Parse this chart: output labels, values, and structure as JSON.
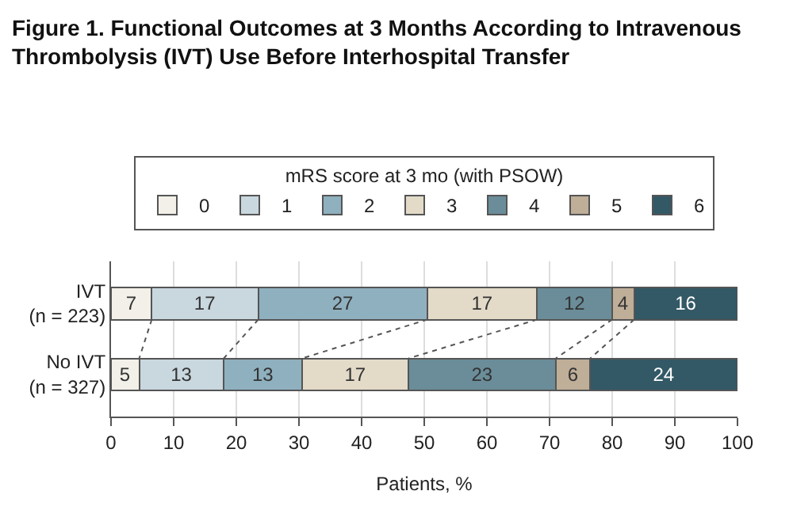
{
  "chart_data": {
    "type": "bar",
    "orientation": "horizontal",
    "stacked": true,
    "title": "Figure 1. Functional Outcomes at 3 Months According to Intravenous\nThrombolysis (IVT) Use Before Interhospital Transfer",
    "categories": [
      "IVT\n(n = 223)",
      "No IVT\n(n = 327)"
    ],
    "legend_title": "mRS score at 3 mo (with PSOW)",
    "xlabel": "Patients, %",
    "xlim": [
      0,
      100
    ],
    "xticks": [
      0,
      10,
      20,
      30,
      40,
      50,
      60,
      70,
      80,
      90,
      100
    ],
    "grid": "x",
    "legend": "top",
    "series": [
      {
        "name": "0",
        "color": "#f2f0e8",
        "values": [
          6.5,
          4.5
        ],
        "value_labels": [
          "7",
          "5"
        ]
      },
      {
        "name": "1",
        "color": "#c9d7df",
        "values": [
          17,
          13.5
        ],
        "value_labels": [
          "17",
          "13"
        ]
      },
      {
        "name": "2",
        "color": "#8fb0bf",
        "values": [
          27,
          12.5
        ],
        "value_labels": [
          "27",
          "13"
        ]
      },
      {
        "name": "3",
        "color": "#e3dac8",
        "values": [
          17.5,
          17
        ],
        "value_labels": [
          "17",
          "17"
        ]
      },
      {
        "name": "4",
        "color": "#6a8d99",
        "values": [
          12,
          23.5
        ],
        "value_labels": [
          "12",
          "23"
        ]
      },
      {
        "name": "5",
        "color": "#bfae98",
        "values": [
          3.5,
          5.5
        ],
        "value_labels": [
          "4",
          "6"
        ]
      },
      {
        "name": "6",
        "color": "#335866",
        "values": [
          16.5,
          23.5
        ],
        "value_labels": [
          "16",
          "24"
        ]
      }
    ]
  }
}
